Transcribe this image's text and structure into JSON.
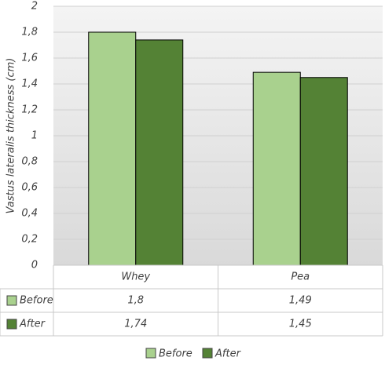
{
  "chart_data": {
    "type": "bar",
    "y_label": "Vastus lateralis thickness (cm)",
    "categories": [
      "Whey",
      "Pea"
    ],
    "series": [
      {
        "name": "Before",
        "color": "#a9d18e",
        "values": [
          1.8,
          1.49
        ],
        "value_labels": [
          "1,8",
          "1,49"
        ]
      },
      {
        "name": "After",
        "color": "#548235",
        "values": [
          1.74,
          1.45
        ],
        "value_labels": [
          "1,74",
          "1,45"
        ]
      }
    ],
    "ylim": [
      0,
      2
    ],
    "yticks": [
      0,
      {
        "value": 0.2,
        "label": "0,2"
      },
      {
        "value": 0.4,
        "label": "0,4"
      },
      {
        "value": 0.6,
        "label": "0,6"
      },
      {
        "value": 0.8,
        "label": "0,8"
      },
      1,
      {
        "value": 1.2,
        "label": "1,2"
      },
      {
        "value": 1.4,
        "label": "1,4"
      },
      {
        "value": 1.6,
        "label": "1,6"
      },
      {
        "value": 1.8,
        "label": "1,8"
      },
      2
    ],
    "grid": true,
    "legend": "bottom",
    "data_table": true
  }
}
